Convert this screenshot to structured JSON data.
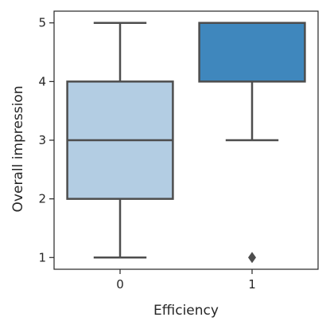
{
  "chart_data": {
    "type": "box",
    "title": "",
    "xlabel": "Efficiency",
    "ylabel": "Overall impression",
    "categories": [
      "0",
      "1"
    ],
    "ylim": [
      0.8,
      5.2
    ],
    "yticks": [
      1,
      2,
      3,
      4,
      5
    ],
    "grid": false,
    "boxes": [
      {
        "category": "0",
        "whisker_low": 1,
        "q1": 2,
        "median": 3,
        "q3": 4,
        "whisker_high": 5,
        "outliers": [],
        "color": "#b3cde3"
      },
      {
        "category": "1",
        "whisker_low": 3,
        "q1": 4,
        "median": 5,
        "q3": 5,
        "whisker_high": 5,
        "outliers": [
          1
        ],
        "color": "#3f87bd"
      }
    ],
    "line_color": "#4d4d4d"
  }
}
